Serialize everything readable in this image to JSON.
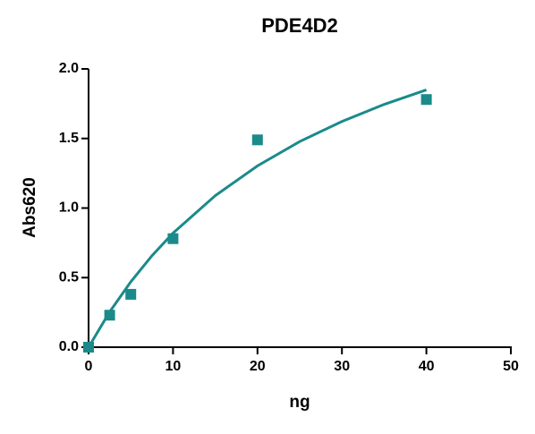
{
  "chart_data": {
    "type": "scatter",
    "title": "PDE4D2",
    "x_label": "ng",
    "y_label": "Abs620",
    "color": "#1b8a8a",
    "x": [
      0,
      2.5,
      5,
      10,
      20,
      40
    ],
    "values": [
      0,
      0.23,
      0.38,
      0.78,
      1.49,
      1.78
    ],
    "fit_x": [
      0,
      2.5,
      5,
      7.5,
      10,
      15,
      20,
      25,
      30,
      35,
      40
    ],
    "fit_values": [
      0,
      0.254,
      0.47,
      0.657,
      0.82,
      1.089,
      1.303,
      1.478,
      1.622,
      1.745,
      1.849
    ],
    "xlim": [
      0,
      50
    ],
    "ylim": [
      0,
      2.0
    ],
    "xticks": [
      0,
      10,
      20,
      30,
      40,
      50
    ],
    "yticks": [
      {
        "value": 0,
        "label": "0.0"
      },
      {
        "value": 0.5,
        "label": "0.5"
      },
      {
        "value": 1.0,
        "label": "1.0"
      },
      {
        "value": 1.5,
        "label": "1.5"
      },
      {
        "value": 2.0,
        "label": "2.0"
      }
    ]
  }
}
